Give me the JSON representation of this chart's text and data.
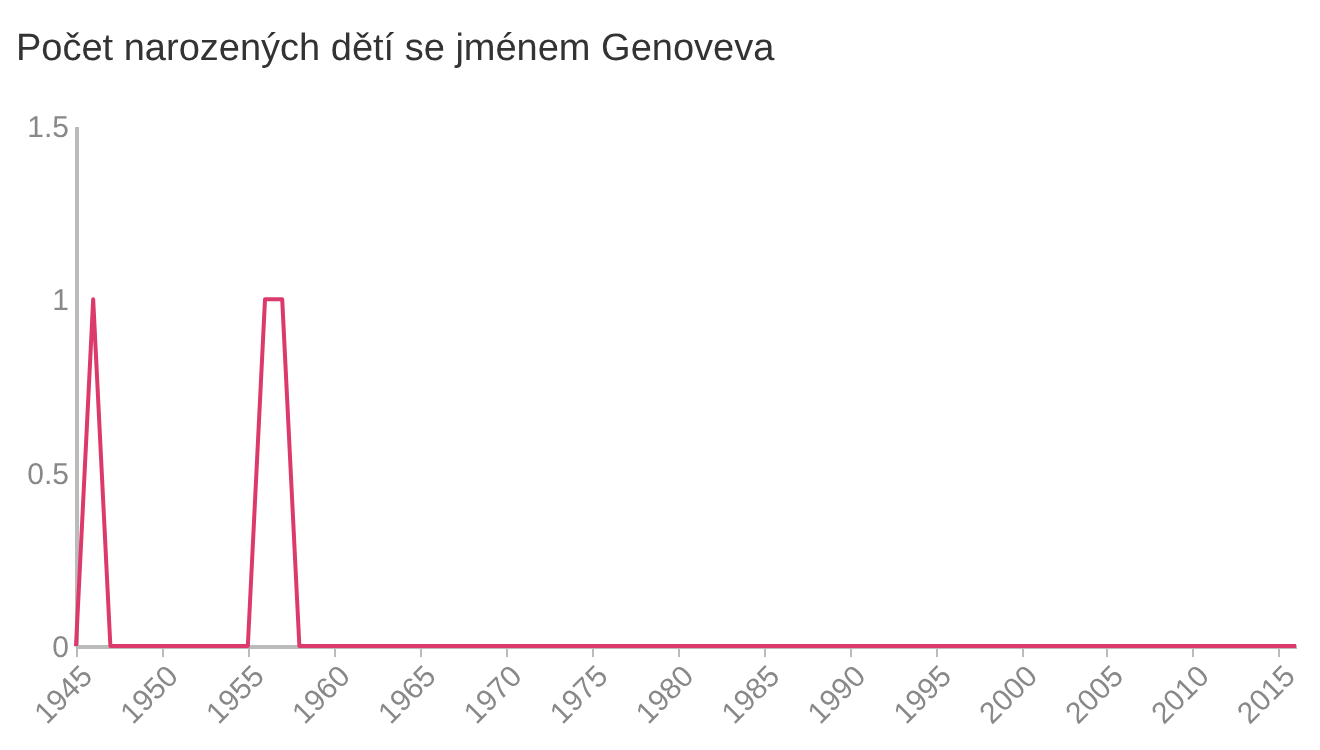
{
  "chart_data": {
    "type": "line",
    "title": "Počet narozených dětí se jménem Genoveva",
    "x": [
      1945,
      1946,
      1947,
      1948,
      1949,
      1950,
      1951,
      1952,
      1953,
      1954,
      1955,
      1956,
      1957,
      1958,
      1959,
      1960,
      1961,
      1962,
      1963,
      1964,
      1965,
      1966,
      1967,
      1968,
      1969,
      1970,
      1971,
      1972,
      1973,
      1974,
      1975,
      1976,
      1977,
      1978,
      1979,
      1980,
      1981,
      1982,
      1983,
      1984,
      1985,
      1986,
      1987,
      1988,
      1989,
      1990,
      1991,
      1992,
      1993,
      1994,
      1995,
      1996,
      1997,
      1998,
      1999,
      2000,
      2001,
      2002,
      2003,
      2004,
      2005,
      2006,
      2007,
      2008,
      2009,
      2010,
      2011,
      2012,
      2013,
      2014,
      2015,
      2016
    ],
    "series": [
      {
        "color": "#dc3a6b",
        "values": [
          0,
          1,
          0,
          0,
          0,
          0,
          0,
          0,
          0,
          0,
          0,
          1,
          1,
          0,
          0,
          0,
          0,
          0,
          0,
          0,
          0,
          0,
          0,
          0,
          0,
          0,
          0,
          0,
          0,
          0,
          0,
          0,
          0,
          0,
          0,
          0,
          0,
          0,
          0,
          0,
          0,
          0,
          0,
          0,
          0,
          0,
          0,
          0,
          0,
          0,
          0,
          0,
          0,
          0,
          0,
          0,
          0,
          0,
          0,
          0,
          0,
          0,
          0,
          0,
          0,
          0,
          0,
          0,
          0,
          0,
          0,
          0
        ]
      }
    ],
    "xlim": [
      1945,
      2016
    ],
    "xticks": [
      1945,
      1950,
      1955,
      1960,
      1965,
      1970,
      1975,
      1980,
      1985,
      1990,
      1995,
      2000,
      2005,
      2010,
      2015
    ],
    "ylim": [
      0,
      1.5
    ],
    "yticks": [
      0,
      0.5,
      1,
      1.5
    ],
    "grid": false,
    "legend": false,
    "marker": "none",
    "line_style": "solid"
  }
}
